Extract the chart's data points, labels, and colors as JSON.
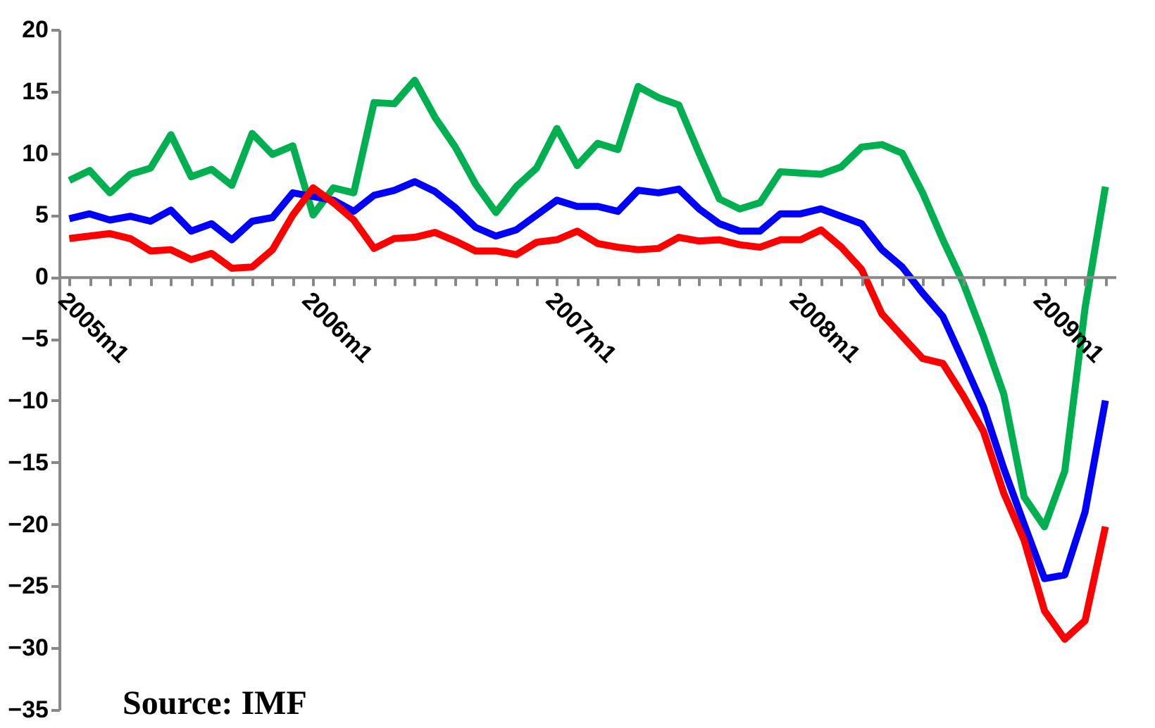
{
  "chart_data": {
    "type": "line",
    "categories": [
      "2005m1",
      null,
      null,
      null,
      null,
      null,
      null,
      null,
      null,
      null,
      null,
      null,
      "2006m1",
      null,
      null,
      null,
      null,
      null,
      null,
      null,
      null,
      null,
      null,
      null,
      "2007m1",
      null,
      null,
      null,
      null,
      null,
      null,
      null,
      null,
      null,
      null,
      null,
      "2008m1",
      null,
      null,
      null,
      null,
      null,
      null,
      null,
      null,
      null,
      null,
      null,
      "2009m1",
      null,
      null,
      null
    ],
    "series": [
      {
        "color": "#00b050",
        "values": [
          7.8,
          8.6,
          6.8,
          8.3,
          8.8,
          11.5,
          8.1,
          8.7,
          7.4,
          11.6,
          9.9,
          10.6,
          5.0,
          7.2,
          6.8,
          14.1,
          14.0,
          15.9,
          12.9,
          10.5,
          7.5,
          5.2,
          7.3,
          8.8,
          12.0,
          9.0,
          10.8,
          10.3,
          15.4,
          14.5,
          13.9,
          10.0,
          6.3,
          5.5,
          6.0,
          8.5,
          8.4,
          8.3,
          8.9,
          10.5,
          10.7,
          10.0,
          6.8,
          3.0,
          -0.5,
          -4.8,
          -9.5,
          -17.8,
          -20.2,
          -15.7,
          -2.5,
          7.3
        ]
      },
      {
        "color": "#0000ff",
        "values": [
          4.7,
          5.1,
          4.6,
          4.9,
          4.5,
          5.4,
          3.7,
          4.3,
          3.0,
          4.5,
          4.8,
          6.8,
          6.5,
          6.2,
          5.3,
          6.6,
          7.0,
          7.7,
          6.9,
          5.6,
          4.0,
          3.3,
          3.8,
          5.0,
          6.2,
          5.7,
          5.7,
          5.3,
          7.0,
          6.8,
          7.1,
          5.5,
          4.3,
          3.7,
          3.7,
          5.1,
          5.1,
          5.5,
          4.9,
          4.3,
          2.2,
          0.8,
          -1.3,
          -3.2,
          -6.8,
          -10.5,
          -15.5,
          -20.0,
          -24.4,
          -24.1,
          -19.0,
          -10.0
        ]
      },
      {
        "color": "#ff0000",
        "values": [
          3.1,
          3.3,
          3.5,
          3.1,
          2.1,
          2.2,
          1.4,
          1.9,
          0.7,
          0.8,
          2.2,
          5.0,
          7.2,
          6.0,
          4.6,
          2.3,
          3.1,
          3.2,
          3.6,
          2.9,
          2.1,
          2.1,
          1.8,
          2.8,
          3.0,
          3.7,
          2.7,
          2.4,
          2.2,
          2.3,
          3.2,
          2.9,
          3.0,
          2.6,
          2.4,
          3.0,
          3.0,
          3.8,
          2.4,
          0.6,
          -3.0,
          -4.8,
          -6.6,
          -7.0,
          -9.6,
          -12.5,
          -17.5,
          -21.3,
          -27.0,
          -29.3,
          -27.8,
          -20.2
        ]
      }
    ],
    "ylim": [
      -35,
      20
    ],
    "yticks": [
      -35,
      -30,
      -25,
      -20,
      -15,
      -10,
      -5,
      0,
      5,
      10,
      15,
      20
    ],
    "grid": false,
    "legend": false,
    "marker": "none",
    "line_style": "solid",
    "annotations": [
      "Source: IMF"
    ]
  }
}
